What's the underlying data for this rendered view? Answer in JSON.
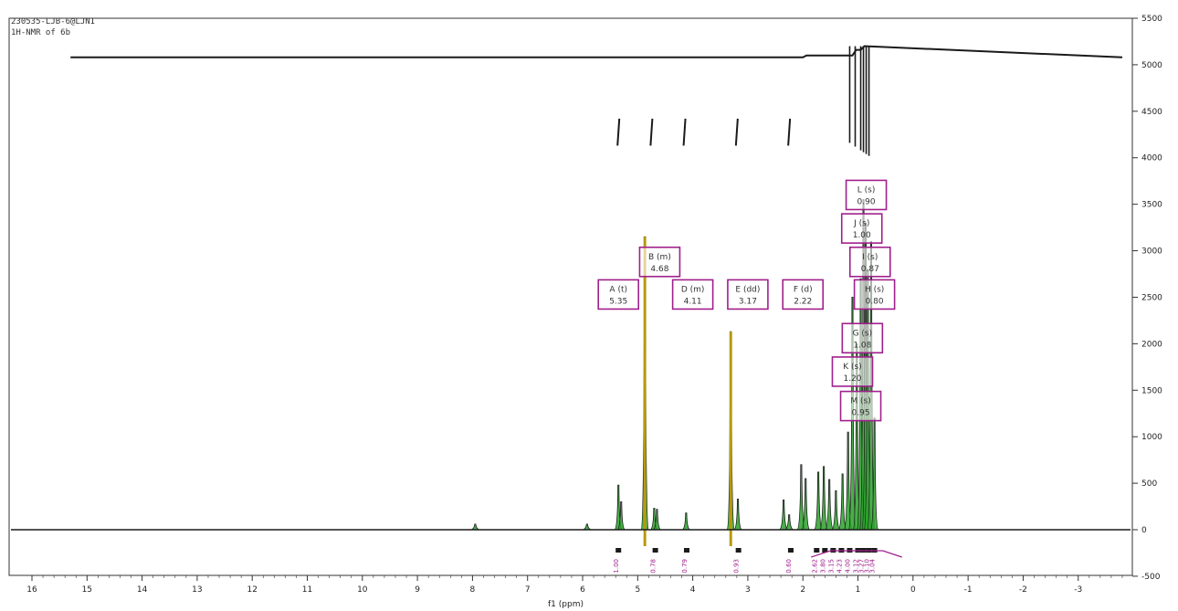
{
  "header": {
    "file_name": "230535-LJB-6@LJNI",
    "experiment": "1H-NMR of 6b"
  },
  "colors": {
    "spectrum": "#1a1a1a",
    "fill_green": "#2aa12a",
    "yellow_line": "#b59a10",
    "label_border": "#a0208c",
    "integral": "#a0208c",
    "frame": "#333333"
  },
  "chart_data": {
    "type": "line",
    "title": "",
    "xlabel": "f1 (ppm)",
    "ylabel": "",
    "xlim": [
      16,
      -4
    ],
    "ylim": [
      -500,
      5500
    ],
    "x_reversed": true,
    "grid": false,
    "x_ticks": [
      16,
      15,
      14,
      13,
      12,
      11,
      10,
      9,
      8,
      7,
      6,
      5,
      4,
      3,
      2,
      1,
      0,
      -1,
      -2,
      -3
    ],
    "y_ticks": [
      -500,
      0,
      500,
      1000,
      1500,
      2000,
      2500,
      3000,
      3500,
      4000,
      4500,
      5000,
      5500
    ],
    "baseline": 0,
    "spectrum_peaks": [
      {
        "ppm": 7.95,
        "height": 60,
        "width": 0.015
      },
      {
        "ppm": 5.92,
        "height": 60,
        "width": 0.02
      },
      {
        "ppm": 5.35,
        "height": 480,
        "width": 0.02
      },
      {
        "ppm": 5.3,
        "height": 300,
        "width": 0.02
      },
      {
        "ppm": 4.87,
        "height": 3150,
        "width": 0.012
      },
      {
        "ppm": 4.7,
        "height": 230,
        "width": 0.02
      },
      {
        "ppm": 4.65,
        "height": 220,
        "width": 0.02
      },
      {
        "ppm": 4.12,
        "height": 180,
        "width": 0.02
      },
      {
        "ppm": 3.31,
        "height": 2130,
        "width": 0.012
      },
      {
        "ppm": 3.18,
        "height": 330,
        "width": 0.02
      },
      {
        "ppm": 2.35,
        "height": 320,
        "width": 0.03
      },
      {
        "ppm": 2.25,
        "height": 160,
        "width": 0.03
      },
      {
        "ppm": 2.03,
        "height": 700,
        "width": 0.03
      },
      {
        "ppm": 1.95,
        "height": 550,
        "width": 0.03
      },
      {
        "ppm": 1.72,
        "height": 620,
        "width": 0.03
      },
      {
        "ppm": 1.62,
        "height": 680,
        "width": 0.03
      },
      {
        "ppm": 1.52,
        "height": 540,
        "width": 0.03
      },
      {
        "ppm": 1.4,
        "height": 420,
        "width": 0.03
      },
      {
        "ppm": 1.28,
        "height": 600,
        "width": 0.03
      },
      {
        "ppm": 1.18,
        "height": 1050,
        "width": 0.03
      },
      {
        "ppm": 1.1,
        "height": 2500,
        "width": 0.02
      },
      {
        "ppm": 1.02,
        "height": 2000,
        "width": 0.02
      },
      {
        "ppm": 0.95,
        "height": 2700,
        "width": 0.02
      },
      {
        "ppm": 0.9,
        "height": 3550,
        "width": 0.015
      },
      {
        "ppm": 0.86,
        "height": 3300,
        "width": 0.015
      },
      {
        "ppm": 0.82,
        "height": 2800,
        "width": 0.015
      },
      {
        "ppm": 0.76,
        "height": 3100,
        "width": 0.015
      },
      {
        "ppm": 0.7,
        "height": 1200,
        "width": 0.02
      }
    ],
    "solvent_lines": [
      4.87,
      3.31
    ],
    "integral_curve": {
      "y_value": 5080,
      "steps": [
        {
          "ppm": 2.0,
          "dy": -20
        },
        {
          "ppm": 1.1,
          "dy": -60
        },
        {
          "ppm": 0.95,
          "dy": -40
        }
      ]
    },
    "multiplet_labels": [
      {
        "letter": "A",
        "mult": "(t)",
        "shift": "5.35",
        "x_ppm": 5.35,
        "y": 2530
      },
      {
        "letter": "B",
        "mult": "(m)",
        "shift": "4.68",
        "x_ppm": 4.6,
        "y": 2880
      },
      {
        "letter": "D",
        "mult": "(m)",
        "shift": "4.11",
        "x_ppm": 4.0,
        "y": 2530
      },
      {
        "letter": "E",
        "mult": "(dd)",
        "shift": "3.17",
        "x_ppm": 3.0,
        "y": 2530
      },
      {
        "letter": "F",
        "mult": "(d)",
        "shift": "2.22",
        "x_ppm": 2.0,
        "y": 2530
      },
      {
        "letter": "L",
        "mult": "(s)",
        "shift": "0.90",
        "x_ppm": 0.85,
        "y": 3600
      },
      {
        "letter": "J",
        "mult": "(s)",
        "shift": "1.00",
        "x_ppm": 0.93,
        "y": 3240
      },
      {
        "letter": "I",
        "mult": "(s)",
        "shift": "0.87",
        "x_ppm": 0.78,
        "y": 2880
      },
      {
        "letter": "H",
        "mult": "(s)",
        "shift": "0.80",
        "x_ppm": 0.7,
        "y": 2530
      },
      {
        "letter": "G",
        "mult": "(s)",
        "shift": "1.08",
        "x_ppm": 0.92,
        "y": 2060
      },
      {
        "letter": "K",
        "mult": "(s)",
        "shift": "1.20",
        "x_ppm": 1.1,
        "y": 1700
      },
      {
        "letter": "M",
        "mult": "(s)",
        "shift": "0.95",
        "x_ppm": 0.95,
        "y": 1330
      }
    ],
    "integrals": [
      {
        "ppm": 5.35,
        "value": "1.00"
      },
      {
        "ppm": 4.68,
        "value": "0.78"
      },
      {
        "ppm": 4.11,
        "value": "0.79"
      },
      {
        "ppm": 3.17,
        "value": "0.93"
      },
      {
        "ppm": 2.22,
        "value": "0.60"
      },
      {
        "ppm": 1.75,
        "value": "2.62"
      },
      {
        "ppm": 1.6,
        "value": "3.80"
      },
      {
        "ppm": 1.45,
        "value": "3.15"
      },
      {
        "ppm": 1.3,
        "value": "4.23"
      },
      {
        "ppm": 1.15,
        "value": "4.00"
      },
      {
        "ppm": 1.0,
        "value": "3.12"
      },
      {
        "ppm": 0.9,
        "value": "3.27"
      },
      {
        "ppm": 0.8,
        "value": "3.10"
      },
      {
        "ppm": 0.7,
        "value": "3.04"
      }
    ],
    "spike_marks": [
      5.35,
      4.75,
      4.15,
      3.2,
      2.25
    ]
  }
}
